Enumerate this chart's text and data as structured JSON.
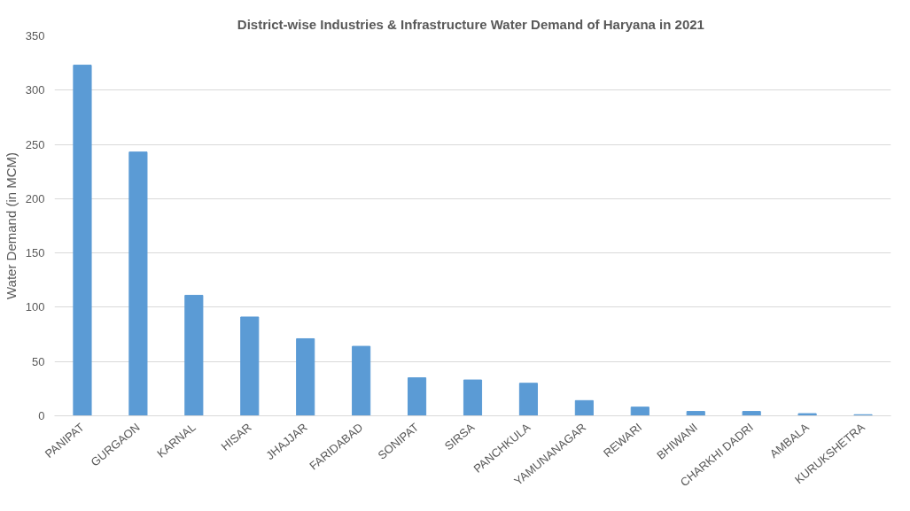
{
  "chart_data": {
    "type": "bar",
    "title": "District-wise Industries & Infrastructure  Water Demand of Haryana in 2021",
    "ylabel": "Water Demand (in MCM)",
    "categories": [
      "PANIPAT",
      "GURGAON",
      "KARNAL",
      "HISAR",
      "JHAJJAR",
      "FARIDABAD",
      "SONIPAT",
      "SIRSA",
      "PANCHKULA",
      "YAMUNANAGAR",
      "REWARI",
      "BHIWANI",
      "CHARKHI DADRI",
      "AMBALA",
      "KURUKSHETRA"
    ],
    "values": [
      323,
      243,
      111,
      91,
      71,
      64,
      35,
      33,
      30,
      14,
      8,
      4,
      4,
      2,
      1
    ],
    "color": "#5b9bd5",
    "ylim": [
      0,
      350
    ],
    "yticks": [
      0,
      50,
      100,
      150,
      200,
      250,
      300,
      350
    ],
    "grid": "y"
  }
}
